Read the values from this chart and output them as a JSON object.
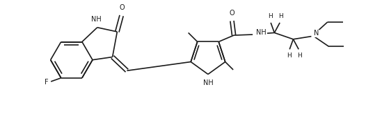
{
  "bg_color": "#ffffff",
  "line_color": "#1a1a1a",
  "line_width": 1.2,
  "font_size": 7.0,
  "figsize": [
    5.49,
    1.65
  ],
  "dpi": 100,
  "xlim": [
    0,
    10.5
  ],
  "ylim": [
    0,
    3.0
  ]
}
